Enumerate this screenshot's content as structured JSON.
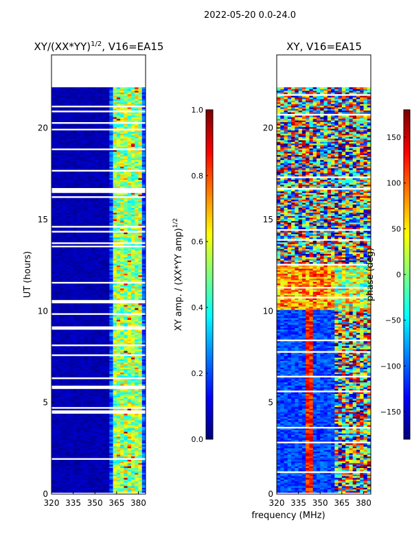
{
  "figure_title": "2022-05-20 0.0-24.0",
  "colors": {
    "jet": [
      "#00007f",
      "#0000ff",
      "#007fff",
      "#00ffff",
      "#7fff7f",
      "#ffff00",
      "#ff7f00",
      "#ff0000",
      "#7f0000"
    ],
    "frame": "#000000",
    "gap": "#ffffff"
  },
  "chart_data": [
    {
      "type": "heatmap",
      "title": "XY/(XX*YY)",
      "title_sup": "1/2",
      "title_suffix": ", V16=EA15",
      "xlabel": "",
      "ylabel": "UT (hours)",
      "xlim": [
        320,
        385
      ],
      "ylim": [
        0,
        24
      ],
      "xticks": [
        320,
        335,
        350,
        365,
        380
      ],
      "yticks": [
        0,
        5,
        10,
        15,
        20
      ],
      "data_extent_hours": [
        0,
        22.2
      ],
      "bright_channels_mhz": [
        363,
        366,
        369,
        372,
        375,
        378,
        381
      ],
      "colorbar": {
        "label": "XY amp. / (XX*YY amp)",
        "label_sup": "1/2",
        "range": [
          0.0,
          1.0
        ],
        "ticks": [
          "0.0",
          "0.2",
          "0.4",
          "0.6",
          "0.8",
          "1.0"
        ]
      }
    },
    {
      "type": "heatmap",
      "title": "XY, V16=EA15",
      "xlabel": "frequency (MHz)",
      "ylabel": "",
      "xlim": [
        320,
        385
      ],
      "ylim": [
        0,
        24
      ],
      "xticks": [
        320,
        335,
        350,
        365,
        380
      ],
      "yticks": [
        0,
        5,
        10,
        15,
        20
      ],
      "data_extent_hours": [
        0,
        22.2
      ],
      "colorbar": {
        "label": "phase (deg)",
        "range": [
          -180,
          180
        ],
        "ticks": [
          "150",
          "100",
          "50",
          "0",
          "−50",
          "−100",
          "−150"
        ],
        "tick_values": [
          150,
          100,
          50,
          0,
          -50,
          -100,
          -150
        ]
      }
    }
  ]
}
